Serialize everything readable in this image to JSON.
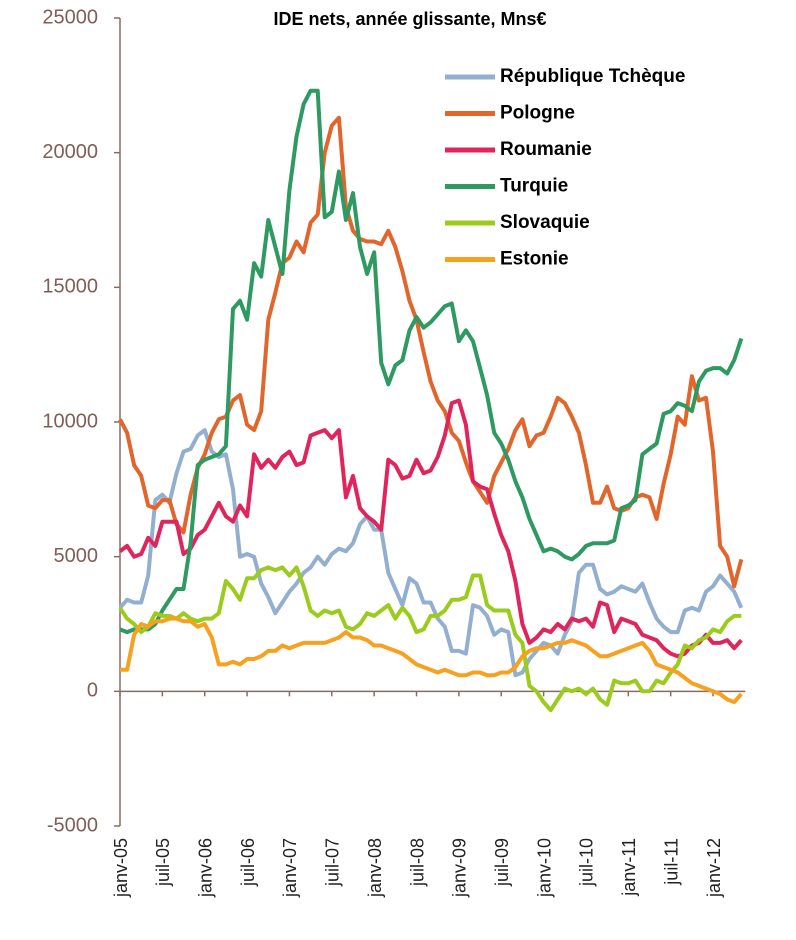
{
  "chart_data": {
    "type": "line",
    "title": "IDE nets, année glissante, Mns€",
    "categories": [
      "janv-05",
      null,
      null,
      null,
      null,
      null,
      "juil-05",
      null,
      null,
      null,
      null,
      null,
      "janv-06",
      null,
      null,
      null,
      null,
      null,
      "juil-06",
      null,
      null,
      null,
      null,
      null,
      "janv-07",
      null,
      null,
      null,
      null,
      null,
      "juil-07",
      null,
      null,
      null,
      null,
      null,
      "janv-08",
      null,
      null,
      null,
      null,
      null,
      "juil-08",
      null,
      null,
      null,
      null,
      null,
      "janv-09",
      null,
      null,
      null,
      null,
      null,
      "juil-09",
      null,
      null,
      null,
      null,
      null,
      "janv-10",
      null,
      null,
      null,
      null,
      null,
      "juil-10",
      null,
      null,
      null,
      null,
      null,
      "janv-11",
      null,
      null,
      null,
      null,
      null,
      "juil-11",
      null,
      null,
      null,
      null,
      null,
      "janv-12",
      null,
      null,
      null,
      null
    ],
    "ylim": [
      -5000,
      25000
    ],
    "yticks": [
      -5000,
      0,
      5000,
      10000,
      15000,
      20000,
      25000
    ],
    "grid": false,
    "legend": "top-right",
    "series": [
      {
        "name": "République Tchèque",
        "color": "#93afd0",
        "values": [
          3100,
          3400,
          3300,
          3300,
          4300,
          7100,
          7300,
          7000,
          8100,
          8900,
          9000,
          9500,
          9700,
          8900,
          8700,
          8800,
          7500,
          5000,
          5100,
          5000,
          4000,
          3500,
          2900,
          3300,
          3700,
          4000,
          4400,
          4600,
          5000,
          4700,
          5100,
          5300,
          5200,
          5500,
          6200,
          6500,
          6000,
          6000,
          4400,
          3800,
          3200,
          4200,
          4000,
          3300,
          3300,
          2700,
          2400,
          1500,
          1500,
          1400,
          3200,
          3100,
          2800,
          2100,
          2300,
          2200,
          600,
          700,
          1200,
          1500,
          1800,
          1700,
          1400,
          2100,
          2600,
          4400,
          4700,
          4700,
          3800,
          3600,
          3700,
          3900,
          3800,
          3700,
          4000,
          3300,
          2700,
          2400,
          2200,
          2200,
          3000,
          3100,
          3000,
          3700,
          3900,
          4300,
          4000,
          3700,
          3100
        ]
      },
      {
        "name": "Pologne",
        "color": "#e2662b",
        "values": [
          10100,
          9600,
          8400,
          8000,
          6900,
          6800,
          7100,
          7100,
          6200,
          5900,
          7300,
          8300,
          8800,
          9600,
          10100,
          10200,
          10800,
          11000,
          9900,
          9700,
          10400,
          13800,
          14800,
          15900,
          16100,
          16700,
          16300,
          17400,
          17700,
          20000,
          21000,
          21300,
          18000,
          17100,
          16800,
          16700,
          16700,
          16600,
          17100,
          16500,
          15600,
          14500,
          13800,
          12600,
          11500,
          10800,
          10400,
          9600,
          9300,
          8500,
          7800,
          7400,
          7000,
          8000,
          8500,
          9000,
          9700,
          10100,
          9100,
          9500,
          9600,
          10200,
          10900,
          10700,
          10200,
          9600,
          8400,
          7000,
          7000,
          7600,
          6800,
          6700,
          6800,
          7200,
          7300,
          7200,
          6400,
          7700,
          8800,
          10200,
          9900,
          11700,
          10800,
          10900,
          8900,
          5400,
          5000,
          3900,
          4900
        ]
      },
      {
        "name": "Roumanie",
        "color": "#e0255d",
        "values": [
          5200,
          5400,
          5000,
          5100,
          5700,
          5400,
          6300,
          6300,
          6300,
          5100,
          5300,
          5800,
          6000,
          6500,
          7000,
          6500,
          6300,
          6900,
          6500,
          8800,
          8300,
          8600,
          8300,
          8700,
          8900,
          8400,
          8500,
          9500,
          9600,
          9700,
          9400,
          9700,
          7200,
          8000,
          6800,
          6500,
          6300,
          6000,
          8600,
          8400,
          7900,
          8000,
          8600,
          8100,
          8200,
          8700,
          9500,
          10700,
          10800,
          9900,
          7800,
          7600,
          7500,
          6600,
          5800,
          5200,
          4100,
          2500,
          1800,
          2000,
          2300,
          2200,
          2500,
          2300,
          2700,
          2600,
          2700,
          2400,
          3300,
          3200,
          2200,
          2700,
          2600,
          2500,
          2100,
          2000,
          1900,
          1600,
          1400,
          1300,
          1400,
          1700,
          1800,
          2100,
          1800,
          1800,
          1900,
          1600,
          1900
        ]
      },
      {
        "name": "Turquie",
        "color": "#2e9a62",
        "values": [
          2300,
          2200,
          2300,
          2300,
          2300,
          2500,
          3000,
          3400,
          3800,
          3800,
          5500,
          8400,
          8600,
          8700,
          8800,
          9100,
          14200,
          14500,
          13800,
          15900,
          15400,
          17500,
          16500,
          15500,
          18600,
          20600,
          21800,
          22300,
          22300,
          17600,
          17800,
          19300,
          17500,
          18500,
          16500,
          15500,
          16300,
          12200,
          11400,
          12100,
          12300,
          13400,
          13900,
          13500,
          13700,
          14000,
          14300,
          14400,
          13000,
          13400,
          13000,
          12000,
          11000,
          9600,
          9200,
          8600,
          7800,
          7200,
          6400,
          5800,
          5200,
          5300,
          5200,
          5000,
          4900,
          5100,
          5400,
          5500,
          5500,
          5500,
          5600,
          6800,
          6900,
          7100,
          8800,
          9000,
          9200,
          10300,
          10400,
          10700,
          10600,
          10400,
          11500,
          11900,
          12000,
          12000,
          11800,
          12300,
          13100
        ]
      },
      {
        "name": "Slovaquie",
        "color": "#9bcc1d",
        "values": [
          3100,
          2700,
          2500,
          2200,
          2400,
          2900,
          2800,
          2800,
          2700,
          2900,
          2700,
          2600,
          2700,
          2700,
          2900,
          4100,
          3800,
          3400,
          4200,
          4200,
          4500,
          4600,
          4500,
          4600,
          4300,
          4600,
          3900,
          3000,
          2800,
          3000,
          2900,
          3000,
          2400,
          2300,
          2500,
          2900,
          2800,
          3000,
          3200,
          2700,
          3100,
          2800,
          2200,
          2300,
          2800,
          2800,
          3000,
          3400,
          3400,
          3500,
          4300,
          4300,
          3200,
          3000,
          3000,
          3000,
          2100,
          1800,
          200,
          0,
          -400,
          -700,
          -300,
          100,
          0,
          100,
          -100,
          100,
          -300,
          -500,
          400,
          300,
          300,
          400,
          0,
          0,
          400,
          300,
          700,
          1000,
          1700,
          1600,
          1900,
          2000,
          2300,
          2200,
          2600,
          2800,
          2800
        ]
      },
      {
        "name": "Estonie",
        "color": "#f6a11f",
        "values": [
          800,
          800,
          2100,
          2500,
          2400,
          2600,
          2600,
          2700,
          2700,
          2600,
          2600,
          2400,
          2500,
          2000,
          1000,
          1000,
          1100,
          1000,
          1200,
          1200,
          1300,
          1500,
          1500,
          1700,
          1600,
          1700,
          1800,
          1800,
          1800,
          1800,
          1900,
          2000,
          2200,
          2000,
          2000,
          1900,
          1700,
          1700,
          1600,
          1500,
          1400,
          1200,
          1000,
          900,
          800,
          700,
          800,
          700,
          600,
          600,
          700,
          700,
          600,
          600,
          700,
          700,
          900,
          1300,
          1500,
          1600,
          1600,
          1700,
          1800,
          1800,
          1900,
          1800,
          1700,
          1500,
          1300,
          1300,
          1400,
          1500,
          1600,
          1700,
          1800,
          1500,
          1000,
          900,
          800,
          700,
          500,
          300,
          200,
          100,
          0,
          -100,
          -300,
          -400,
          -100
        ]
      }
    ]
  }
}
